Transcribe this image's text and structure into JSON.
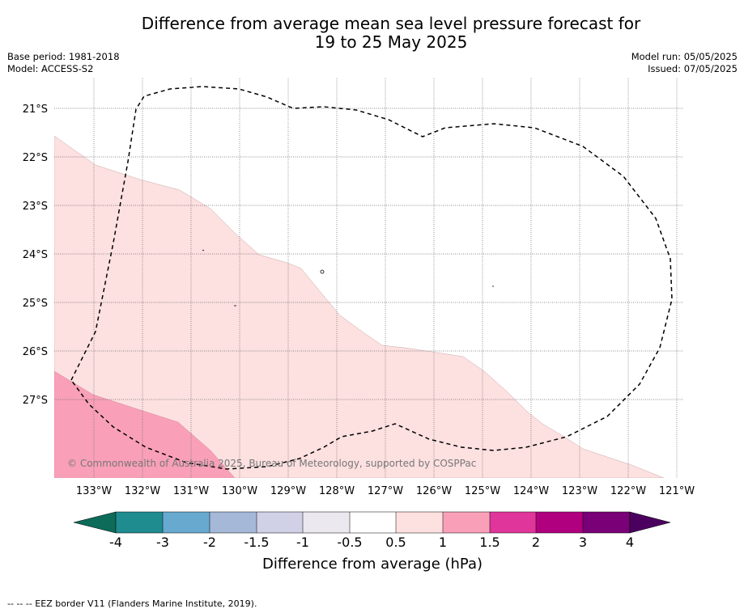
{
  "title": {
    "line1": "Difference from average mean sea level pressure forecast for",
    "line2": "19 to 25 May 2025"
  },
  "meta": {
    "base_period": "Base period: 1981-2018",
    "model": "Model: ACCESS-S2",
    "model_run": "Model run: 05/05/2025",
    "issued": "Issued: 07/05/2025"
  },
  "map": {
    "lat_labels": [
      "21°S",
      "22°S",
      "23°S",
      "24°S",
      "25°S",
      "26°S",
      "27°S"
    ],
    "lon_labels": [
      "133°W",
      "132°W",
      "131°W",
      "130°W",
      "129°W",
      "128°W",
      "127°W",
      "126°W",
      "125°W",
      "124°W",
      "123°W",
      "122°W",
      "121°W"
    ],
    "copyright": "© Commonwealth of Australia 2025, Bureau of Meteorology, supported by COSPPac",
    "fill_colors": {
      "band_0_5_to_1": "#fde0e0",
      "band_1_to_1_5": "#f9a0b8"
    },
    "eez_border": "dashed black line"
  },
  "colorbar": {
    "title": "Difference from average (hPa)",
    "labels": [
      "-4",
      "-3",
      "-2",
      "-1.5",
      "-1",
      "-0.5",
      "0.5",
      "1",
      "1.5",
      "2",
      "3",
      "4"
    ],
    "colors": [
      "#1f8c90",
      "#67a9cf",
      "#a6b8d8",
      "#d0d1e6",
      "#ebe9ef",
      "#ffffff",
      "#fde0e0",
      "#f9a0b8",
      "#e0359a",
      "#b0007f",
      "#7a0077"
    ],
    "low_extend_color": "#0d6b5a",
    "high_extend_color": "#4b0060"
  },
  "footnote": "--  --  -- EEZ border V11 (Flanders Marine Institute, 2019)."
}
